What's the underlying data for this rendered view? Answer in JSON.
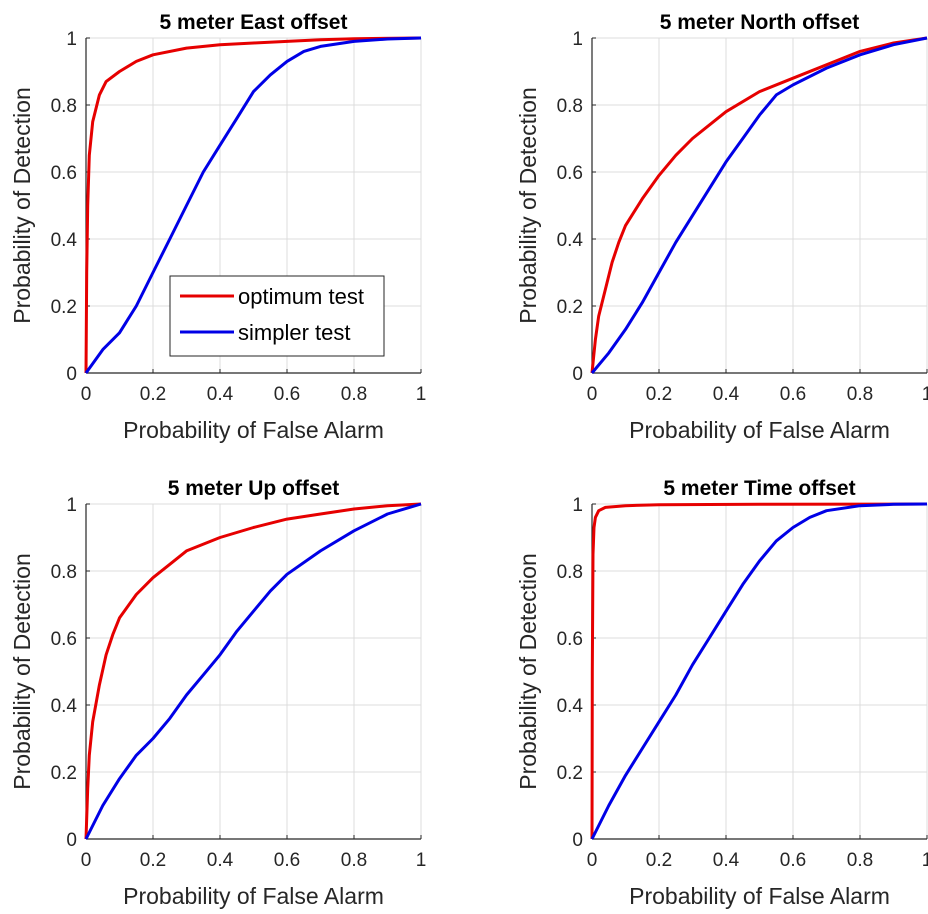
{
  "chart_data": [
    {
      "type": "line",
      "title": "5 meter East offset",
      "xlabel": "Probability of False Alarm",
      "ylabel": "Probability of Detection",
      "xlim": [
        0,
        1
      ],
      "ylim": [
        0,
        1
      ],
      "xticks": [
        "0",
        "0.2",
        "0.4",
        "0.6",
        "0.8",
        "1"
      ],
      "yticks": [
        "0",
        "0.2",
        "0.4",
        "0.6",
        "0.8",
        "1"
      ],
      "grid": true,
      "legend": {
        "placement": "bottom-right",
        "entries": [
          "optimum test",
          "simpler test"
        ]
      },
      "series": [
        {
          "name": "optimum test",
          "color": "#e60000",
          "points": [
            [
              0,
              0
            ],
            [
              0.002,
              0.3
            ],
            [
              0.005,
              0.5
            ],
            [
              0.01,
              0.65
            ],
            [
              0.02,
              0.75
            ],
            [
              0.04,
              0.83
            ],
            [
              0.06,
              0.87
            ],
            [
              0.1,
              0.9
            ],
            [
              0.15,
              0.93
            ],
            [
              0.2,
              0.95
            ],
            [
              0.3,
              0.97
            ],
            [
              0.4,
              0.98
            ],
            [
              0.5,
              0.985
            ],
            [
              0.6,
              0.99
            ],
            [
              0.7,
              0.995
            ],
            [
              0.8,
              0.998
            ],
            [
              1,
              1
            ]
          ]
        },
        {
          "name": "simpler test",
          "color": "#0000e6",
          "points": [
            [
              0,
              0
            ],
            [
              0.05,
              0.07
            ],
            [
              0.1,
              0.12
            ],
            [
              0.15,
              0.2
            ],
            [
              0.2,
              0.3
            ],
            [
              0.25,
              0.4
            ],
            [
              0.3,
              0.5
            ],
            [
              0.35,
              0.6
            ],
            [
              0.4,
              0.68
            ],
            [
              0.45,
              0.76
            ],
            [
              0.5,
              0.84
            ],
            [
              0.55,
              0.89
            ],
            [
              0.6,
              0.93
            ],
            [
              0.65,
              0.96
            ],
            [
              0.7,
              0.975
            ],
            [
              0.8,
              0.99
            ],
            [
              0.9,
              0.997
            ],
            [
              1,
              1
            ]
          ]
        }
      ]
    },
    {
      "type": "line",
      "title": "5 meter North offset",
      "xlabel": "Probability of False Alarm",
      "ylabel": "Probability of Detection",
      "xlim": [
        0,
        1
      ],
      "ylim": [
        0,
        1
      ],
      "xticks": [
        "0",
        "0.2",
        "0.4",
        "0.6",
        "0.8",
        "1"
      ],
      "yticks": [
        "0",
        "0.2",
        "0.4",
        "0.6",
        "0.8",
        "1"
      ],
      "grid": true,
      "series": [
        {
          "name": "optimum test",
          "color": "#e60000",
          "points": [
            [
              0,
              0
            ],
            [
              0.01,
              0.1
            ],
            [
              0.02,
              0.17
            ],
            [
              0.04,
              0.25
            ],
            [
              0.06,
              0.33
            ],
            [
              0.08,
              0.39
            ],
            [
              0.1,
              0.44
            ],
            [
              0.15,
              0.52
            ],
            [
              0.2,
              0.59
            ],
            [
              0.25,
              0.65
            ],
            [
              0.3,
              0.7
            ],
            [
              0.4,
              0.78
            ],
            [
              0.5,
              0.84
            ],
            [
              0.6,
              0.88
            ],
            [
              0.7,
              0.92
            ],
            [
              0.8,
              0.96
            ],
            [
              0.9,
              0.985
            ],
            [
              1,
              1
            ]
          ]
        },
        {
          "name": "simpler test",
          "color": "#0000e6",
          "points": [
            [
              0,
              0
            ],
            [
              0.05,
              0.06
            ],
            [
              0.1,
              0.13
            ],
            [
              0.15,
              0.21
            ],
            [
              0.2,
              0.3
            ],
            [
              0.25,
              0.39
            ],
            [
              0.3,
              0.47
            ],
            [
              0.35,
              0.55
            ],
            [
              0.4,
              0.63
            ],
            [
              0.45,
              0.7
            ],
            [
              0.5,
              0.77
            ],
            [
              0.55,
              0.83
            ],
            [
              0.6,
              0.86
            ],
            [
              0.7,
              0.91
            ],
            [
              0.8,
              0.95
            ],
            [
              0.9,
              0.98
            ],
            [
              1,
              1
            ]
          ]
        }
      ]
    },
    {
      "type": "line",
      "title": "5 meter Up offset",
      "xlabel": "Probability of False Alarm",
      "ylabel": "Probability of Detection",
      "xlim": [
        0,
        1
      ],
      "ylim": [
        0,
        1
      ],
      "xticks": [
        "0",
        "0.2",
        "0.4",
        "0.6",
        "0.8",
        "1"
      ],
      "yticks": [
        "0",
        "0.2",
        "0.4",
        "0.6",
        "0.8",
        "1"
      ],
      "grid": true,
      "series": [
        {
          "name": "optimum test",
          "color": "#e60000",
          "points": [
            [
              0,
              0
            ],
            [
              0.005,
              0.15
            ],
            [
              0.01,
              0.25
            ],
            [
              0.02,
              0.35
            ],
            [
              0.04,
              0.46
            ],
            [
              0.06,
              0.55
            ],
            [
              0.08,
              0.61
            ],
            [
              0.1,
              0.66
            ],
            [
              0.15,
              0.73
            ],
            [
              0.2,
              0.78
            ],
            [
              0.25,
              0.82
            ],
            [
              0.3,
              0.86
            ],
            [
              0.4,
              0.9
            ],
            [
              0.5,
              0.93
            ],
            [
              0.6,
              0.955
            ],
            [
              0.7,
              0.97
            ],
            [
              0.8,
              0.985
            ],
            [
              0.9,
              0.995
            ],
            [
              1,
              1
            ]
          ]
        },
        {
          "name": "simpler test",
          "color": "#0000e6",
          "points": [
            [
              0,
              0
            ],
            [
              0.05,
              0.1
            ],
            [
              0.1,
              0.18
            ],
            [
              0.15,
              0.25
            ],
            [
              0.2,
              0.3
            ],
            [
              0.25,
              0.36
            ],
            [
              0.3,
              0.43
            ],
            [
              0.35,
              0.49
            ],
            [
              0.4,
              0.55
            ],
            [
              0.45,
              0.62
            ],
            [
              0.5,
              0.68
            ],
            [
              0.55,
              0.74
            ],
            [
              0.6,
              0.79
            ],
            [
              0.7,
              0.86
            ],
            [
              0.8,
              0.92
            ],
            [
              0.9,
              0.97
            ],
            [
              1,
              1
            ]
          ]
        }
      ]
    },
    {
      "type": "line",
      "title": "5 meter Time offset",
      "xlabel": "Probability of False Alarm",
      "ylabel": "Probability of Detection",
      "xlim": [
        0,
        1
      ],
      "ylim": [
        0,
        1
      ],
      "xticks": [
        "0",
        "0.2",
        "0.4",
        "0.6",
        "0.8",
        "1"
      ],
      "yticks": [
        "0",
        "0.2",
        "0.4",
        "0.6",
        "0.8",
        "1"
      ],
      "grid": true,
      "series": [
        {
          "name": "optimum test",
          "color": "#e60000",
          "points": [
            [
              0,
              0
            ],
            [
              0.001,
              0.5
            ],
            [
              0.003,
              0.85
            ],
            [
              0.006,
              0.93
            ],
            [
              0.01,
              0.96
            ],
            [
              0.02,
              0.98
            ],
            [
              0.04,
              0.99
            ],
            [
              0.1,
              0.995
            ],
            [
              0.2,
              0.998
            ],
            [
              0.5,
              0.999
            ],
            [
              1,
              1
            ]
          ]
        },
        {
          "name": "simpler test",
          "color": "#0000e6",
          "points": [
            [
              0,
              0
            ],
            [
              0.05,
              0.1
            ],
            [
              0.1,
              0.19
            ],
            [
              0.15,
              0.27
            ],
            [
              0.2,
              0.35
            ],
            [
              0.25,
              0.43
            ],
            [
              0.3,
              0.52
            ],
            [
              0.35,
              0.6
            ],
            [
              0.4,
              0.68
            ],
            [
              0.45,
              0.76
            ],
            [
              0.5,
              0.83
            ],
            [
              0.55,
              0.89
            ],
            [
              0.6,
              0.93
            ],
            [
              0.65,
              0.96
            ],
            [
              0.7,
              0.98
            ],
            [
              0.8,
              0.995
            ],
            [
              0.9,
              0.999
            ],
            [
              1,
              1
            ]
          ]
        }
      ]
    }
  ]
}
